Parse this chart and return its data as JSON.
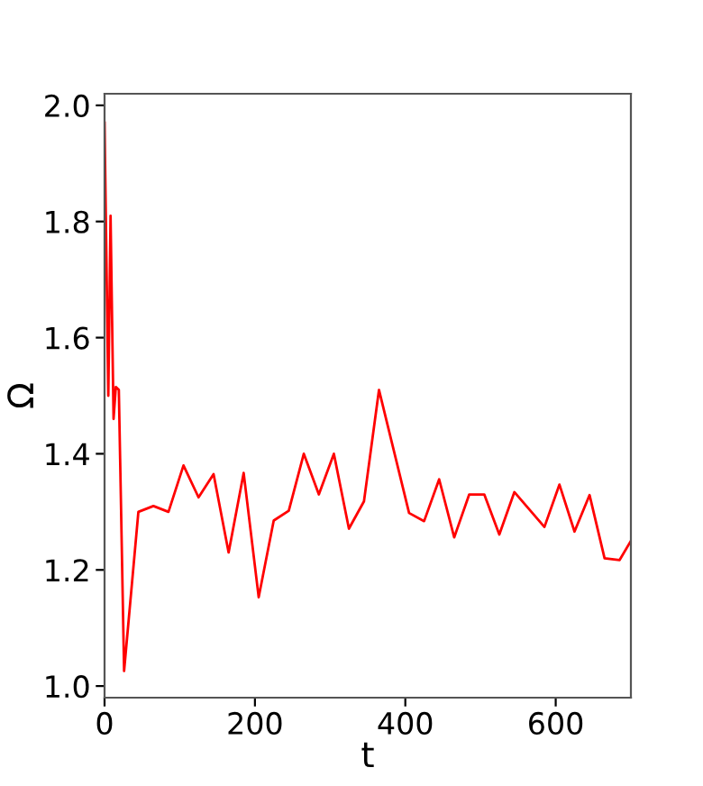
{
  "chart_data": {
    "type": "line",
    "xlabel": "t",
    "ylabel": "Ω",
    "x": [
      0,
      5,
      8,
      12,
      15,
      19,
      26,
      45,
      65,
      85,
      105,
      125,
      145,
      165,
      185,
      205,
      225,
      245,
      265,
      285,
      305,
      325,
      345,
      365,
      405,
      425,
      445,
      465,
      485,
      505,
      525,
      545,
      585,
      605,
      625,
      645,
      665,
      685,
      700
    ],
    "series": [
      {
        "color": "#ff0000",
        "values": [
          1.97,
          1.5,
          1.81,
          1.46,
          1.515,
          1.51,
          1.026,
          1.3,
          1.31,
          1.3,
          1.38,
          1.325,
          1.365,
          1.23,
          1.367,
          1.153,
          1.285,
          1.302,
          1.4,
          1.33,
          1.4,
          1.271,
          1.318,
          1.51,
          1.298,
          1.284,
          1.356,
          1.256,
          1.33,
          1.33,
          1.261,
          1.334,
          1.274,
          1.347,
          1.266,
          1.329,
          1.22,
          1.217,
          1.25
        ]
      }
    ],
    "xlim": [
      0,
      700
    ],
    "ylim": [
      0.98,
      2.02
    ],
    "xticks": [
      0,
      200,
      400,
      600
    ],
    "yticks": [
      {
        "value": 1.0,
        "label": "1.0"
      },
      {
        "value": 1.2,
        "label": "1.2"
      },
      {
        "value": 1.4,
        "label": "1.4"
      },
      {
        "value": 1.6,
        "label": "1.6"
      },
      {
        "value": 1.8,
        "label": "1.8"
      },
      {
        "value": 2.0,
        "label": "2.0"
      }
    ],
    "grid": false,
    "legend": false,
    "marker": "none",
    "line_style": "solid"
  }
}
